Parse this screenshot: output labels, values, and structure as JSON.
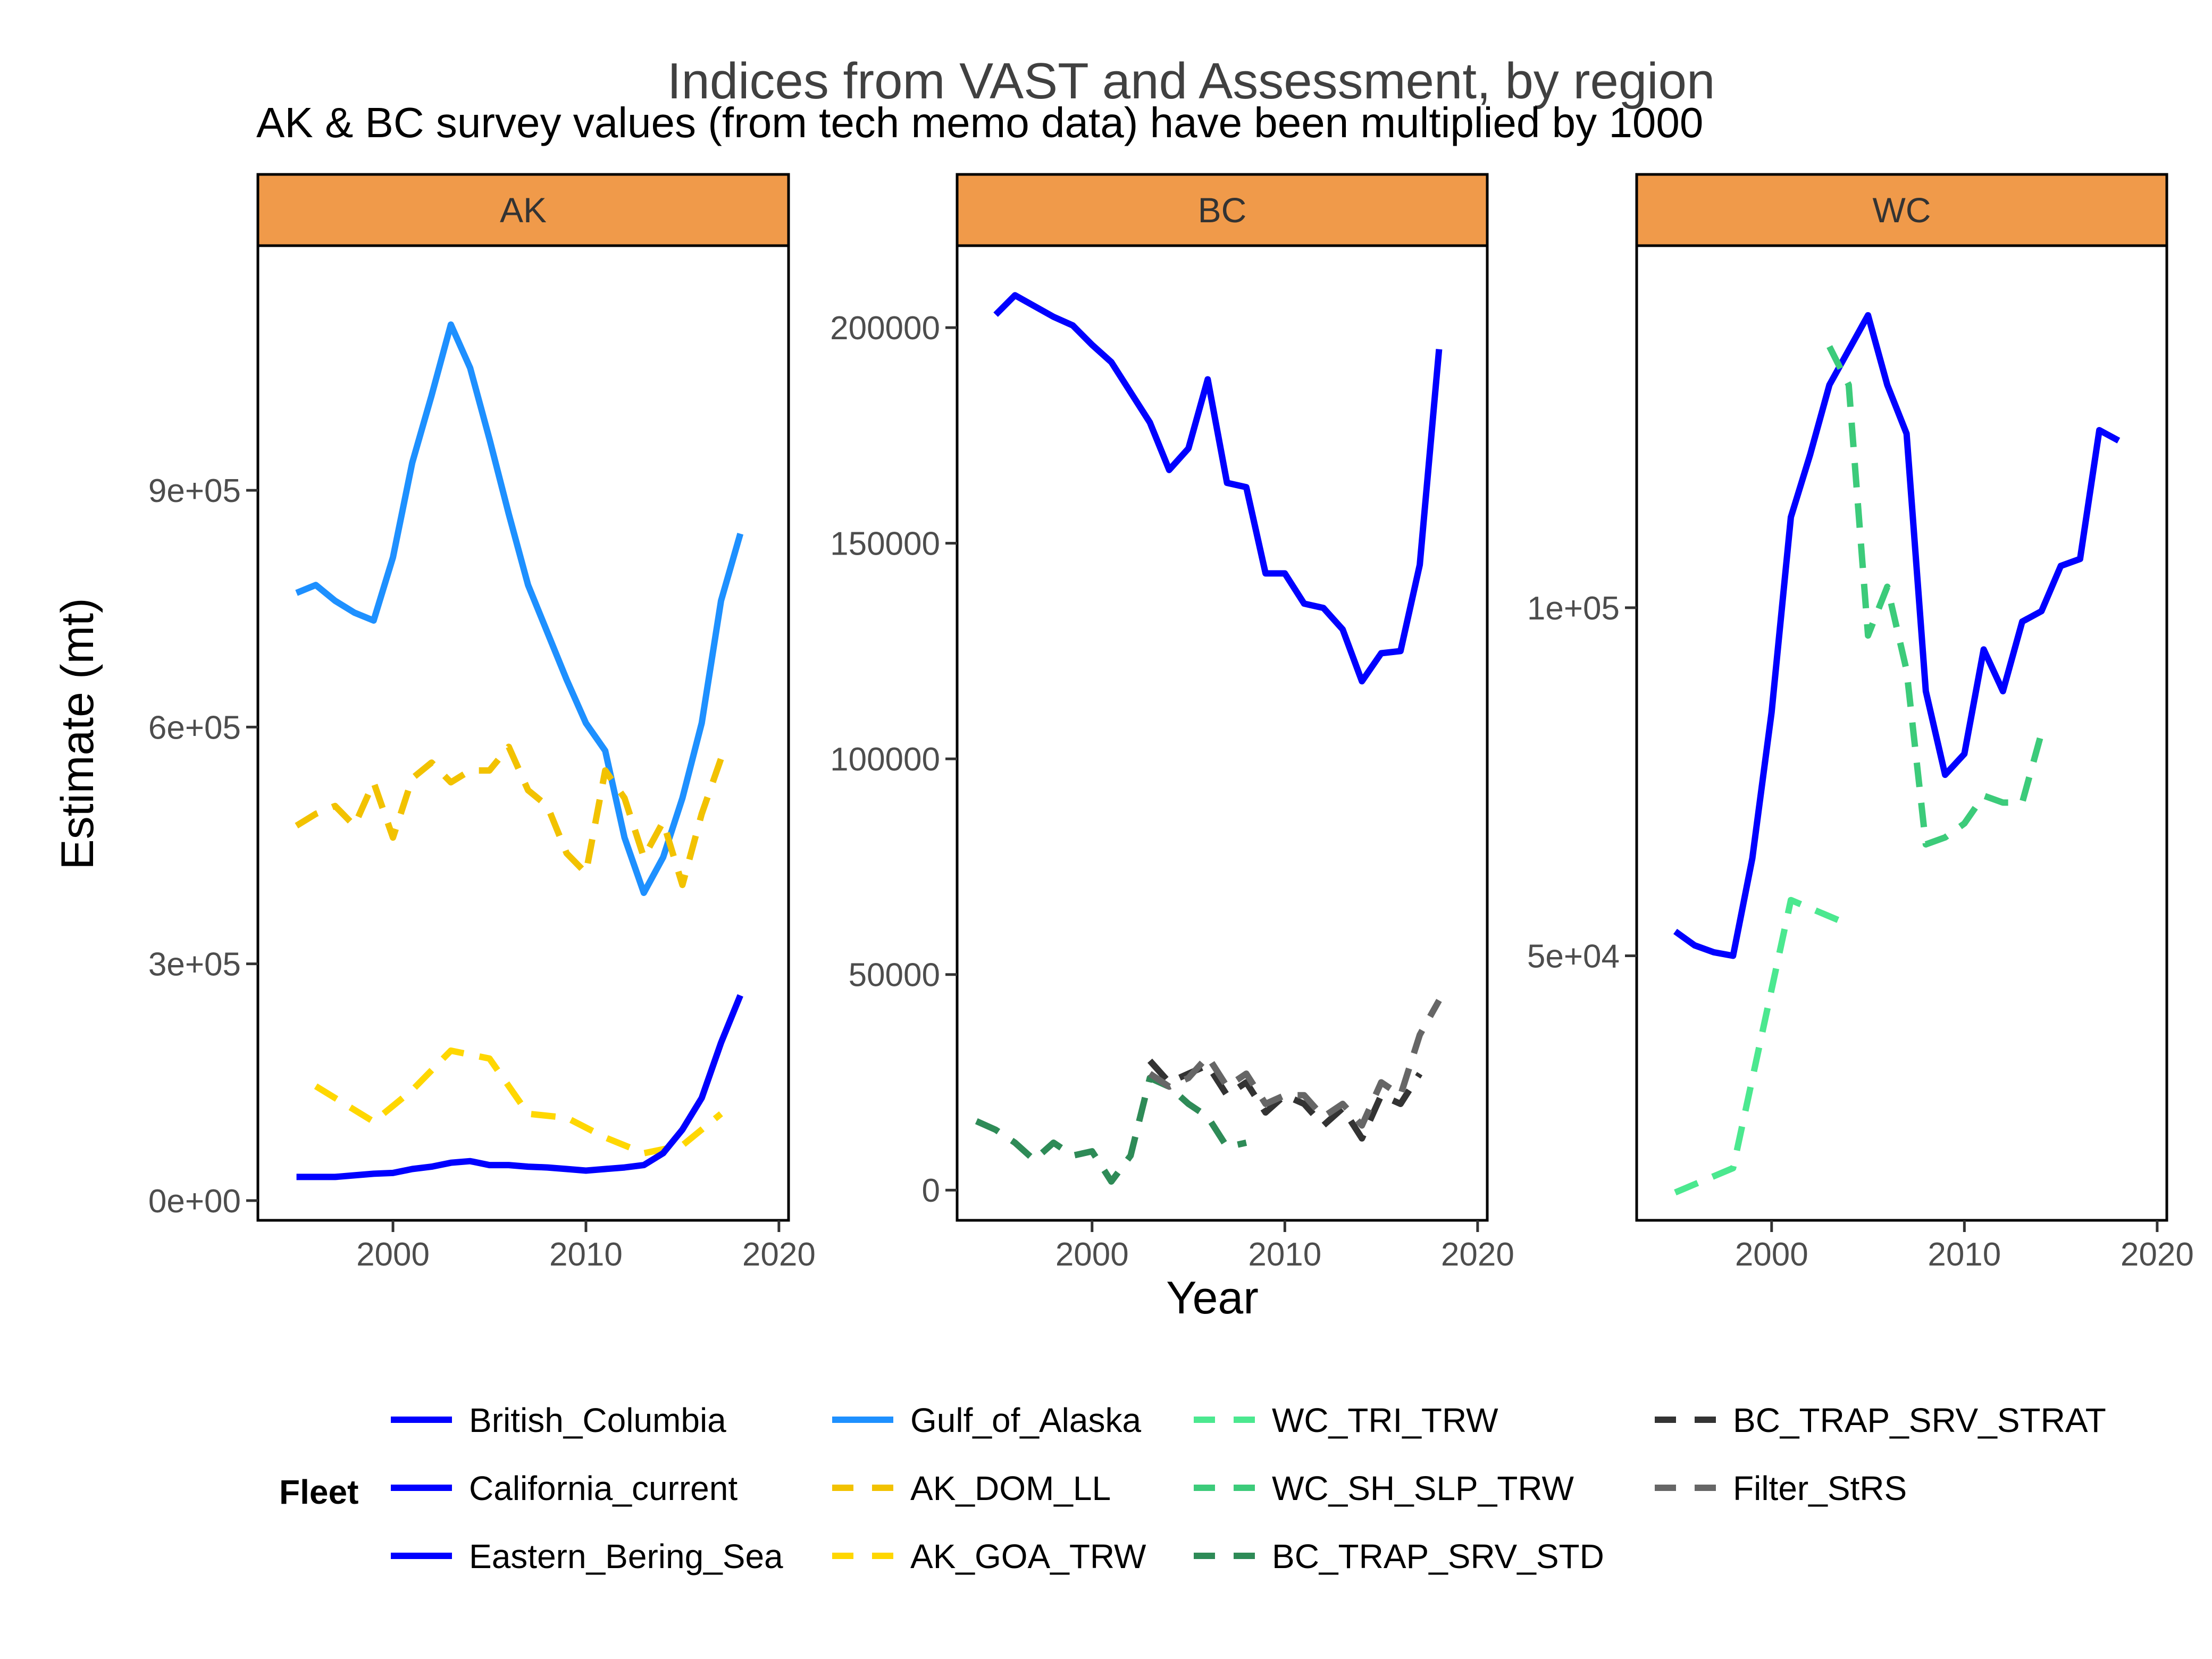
{
  "title": "Indices from VAST and Assessment, by region",
  "subtitle": "AK & BC survey values (from tech memo data) have been multiplied by 1000",
  "xlabel": "Year",
  "ylabel": "Estimate (mt)",
  "strip_color": "#F09A4A",
  "legend": {
    "title": "Fleet",
    "entries": [
      {
        "name": "British_Columbia",
        "color": "#0000FF",
        "dash": false
      },
      {
        "name": "California_current",
        "color": "#0000FF",
        "dash": false
      },
      {
        "name": "Eastern_Bering_Sea",
        "color": "#0000FF",
        "dash": false
      },
      {
        "name": "Gulf_of_Alaska",
        "color": "#1E90FF",
        "dash": false
      },
      {
        "name": "AK_DOM_LL",
        "color": "#F2C200",
        "dash": true
      },
      {
        "name": "AK_GOA_TRW",
        "color": "#FFD700",
        "dash": true
      },
      {
        "name": "WC_TRI_TRW",
        "color": "#4BE88F",
        "dash": true
      },
      {
        "name": "WC_SH_SLP_TRW",
        "color": "#3CCB7A",
        "dash": true
      },
      {
        "name": "BC_TRAP_SRV_STD",
        "color": "#2E8B57",
        "dash": true
      },
      {
        "name": "BC_TRAP_SRV_STRAT",
        "color": "#333333",
        "dash": true
      },
      {
        "name": "Filter_StRS",
        "color": "#666666",
        "dash": true
      }
    ]
  },
  "chart_data": [
    {
      "type": "line",
      "panel": "AK",
      "xlim": [
        1993,
        2020.5
      ],
      "ylim": [
        -25000,
        1210000
      ],
      "xticks": [
        2000,
        2010,
        2020
      ],
      "xtick_labels": [
        "2000",
        "2010",
        "2020"
      ],
      "yticks": [
        0,
        300000,
        600000,
        900000
      ],
      "ytick_labels": [
        "0e+00",
        "3e+05",
        "6e+05",
        "9e+05"
      ],
      "series": [
        {
          "name": "Gulf_of_Alaska",
          "color": "#1E90FF",
          "dash": false,
          "x": [
            1995,
            1996,
            1997,
            1998,
            1999,
            2000,
            2001,
            2002,
            2003,
            2004,
            2005,
            2006,
            2007,
            2008,
            2009,
            2010,
            2011,
            2012,
            2013,
            2014,
            2015,
            2016,
            2017,
            2018
          ],
          "y": [
            770000,
            780000,
            760000,
            745000,
            735000,
            815000,
            935000,
            1020000,
            1110000,
            1055000,
            965000,
            870000,
            780000,
            720000,
            660000,
            605000,
            570000,
            460000,
            390000,
            435000,
            510000,
            605000,
            760000,
            845000
          ]
        },
        {
          "name": "AK_DOM_LL",
          "color": "#F2C200",
          "dash": true,
          "x": [
            1995,
            1996,
            1997,
            1998,
            1999,
            2000,
            2001,
            2002,
            2003,
            2004,
            2005,
            2006,
            2007,
            2008,
            2009,
            2010,
            2011,
            2012,
            2013,
            2014,
            2015,
            2016,
            2017
          ],
          "y": [
            475000,
            490000,
            500000,
            475000,
            530000,
            460000,
            535000,
            555000,
            530000,
            545000,
            545000,
            575000,
            520000,
            500000,
            440000,
            415000,
            545000,
            510000,
            435000,
            480000,
            400000,
            490000,
            560000
          ]
        },
        {
          "name": "AK_GOA_TRW",
          "color": "#FFD700",
          "dash": true,
          "x": [
            1996,
            1999,
            2001,
            2003,
            2005,
            2007,
            2009,
            2011,
            2013,
            2015,
            2017
          ],
          "y": [
            145000,
            100000,
            140000,
            190000,
            180000,
            110000,
            105000,
            80000,
            60000,
            70000,
            110000
          ]
        },
        {
          "name": "Eastern_Bering_Sea",
          "color": "#0000FF",
          "dash": false,
          "x": [
            1995,
            1996,
            1997,
            1998,
            1999,
            2000,
            2001,
            2002,
            2003,
            2004,
            2005,
            2006,
            2007,
            2008,
            2009,
            2010,
            2011,
            2012,
            2013,
            2014,
            2015,
            2016,
            2017,
            2018
          ],
          "y": [
            30000,
            30000,
            30000,
            32000,
            34000,
            35000,
            40000,
            43000,
            48000,
            50000,
            45000,
            45000,
            43000,
            42000,
            40000,
            38000,
            40000,
            42000,
            45000,
            60000,
            90000,
            130000,
            200000,
            260000
          ]
        }
      ]
    },
    {
      "type": "line",
      "panel": "BC",
      "xlim": [
        1993,
        2020.5
      ],
      "ylim": [
        -7000,
        219000
      ],
      "xticks": [
        2000,
        2010,
        2020
      ],
      "xtick_labels": [
        "2000",
        "2010",
        "2020"
      ],
      "yticks": [
        0,
        50000,
        100000,
        150000,
        200000
      ],
      "ytick_labels": [
        "0",
        "50000",
        "100000",
        "150000",
        "200000"
      ],
      "series": [
        {
          "name": "British_Columbia",
          "color": "#0000FF",
          "dash": false,
          "x": [
            1995,
            1996,
            1997,
            1998,
            1999,
            2000,
            2001,
            2002,
            2003,
            2004,
            2005,
            2006,
            2007,
            2008,
            2009,
            2010,
            2011,
            2012,
            2013,
            2014,
            2015,
            2016,
            2017,
            2018
          ],
          "y": [
            203000,
            207500,
            205000,
            202500,
            200500,
            196000,
            192000,
            185000,
            178000,
            167000,
            172000,
            188000,
            164000,
            163000,
            143000,
            143000,
            136000,
            135000,
            130000,
            118000,
            124500,
            125000,
            145000,
            195000
          ]
        },
        {
          "name": "BC_TRAP_SRV_STD",
          "color": "#2E8B57",
          "dash": true,
          "x": [
            1994,
            1995,
            1996,
            1997,
            1998,
            1999,
            2000,
            2001,
            2002,
            2003,
            2004,
            2005,
            2006,
            2007,
            2008
          ],
          "y": [
            16000,
            14000,
            11000,
            7000,
            11000,
            8000,
            9000,
            2000,
            8000,
            26000,
            24000,
            20000,
            17000,
            10000,
            11000
          ]
        },
        {
          "name": "BC_TRAP_SRV_STRAT",
          "color": "#333333",
          "dash": true,
          "x": [
            2003,
            2004,
            2005,
            2006,
            2007,
            2008,
            2009,
            2010,
            2011,
            2012,
            2013,
            2014,
            2015,
            2016,
            2017
          ],
          "y": [
            30000,
            25000,
            27000,
            29000,
            22000,
            25000,
            18000,
            22000,
            20000,
            15000,
            19000,
            12000,
            22000,
            20000,
            27000
          ]
        },
        {
          "name": "Filter_StRS",
          "color": "#666666",
          "dash": true,
          "x": [
            2003,
            2004,
            2005,
            2006,
            2007,
            2008,
            2009,
            2010,
            2011,
            2012,
            2013,
            2014,
            2015,
            2016,
            2017,
            2018
          ],
          "y": [
            27000,
            24000,
            26000,
            31000,
            24000,
            27000,
            20000,
            22000,
            22000,
            17000,
            20000,
            15000,
            25000,
            22000,
            36000,
            44000
          ]
        }
      ]
    },
    {
      "type": "line",
      "panel": "WC",
      "xlim": [
        1993,
        2020.5
      ],
      "ylim": [
        12000,
        152000
      ],
      "xticks": [
        2000,
        2010,
        2020
      ],
      "xtick_labels": [
        "2000",
        "2010",
        "2020"
      ],
      "yticks": [
        50000,
        100000
      ],
      "ytick_labels": [
        "5e+04",
        "1e+05"
      ],
      "series": [
        {
          "name": "California_current",
          "color": "#0000FF",
          "dash": false,
          "x": [
            1995,
            1996,
            1997,
            1998,
            1999,
            2000,
            2001,
            2002,
            2003,
            2004,
            2005,
            2006,
            2007,
            2008,
            2009,
            2010,
            2011,
            2012,
            2013,
            2014,
            2015,
            2016,
            2017,
            2018
          ],
          "y": [
            53500,
            51500,
            50500,
            50000,
            64000,
            85000,
            113000,
            122000,
            132000,
            137000,
            142000,
            132000,
            125000,
            88000,
            76000,
            79000,
            94000,
            88000,
            98000,
            99500,
            106000,
            107000,
            125500,
            124000
          ]
        },
        {
          "name": "WC_TRI_TRW",
          "color": "#4BE88F",
          "dash": true,
          "x": [
            1995,
            1998,
            2001,
            2004
          ],
          "y": [
            16000,
            19500,
            58000,
            54500
          ]
        },
        {
          "name": "WC_SH_SLP_TRW",
          "color": "#3CCB7A",
          "dash": true,
          "x": [
            2003,
            2004,
            2005,
            2006,
            2007,
            2008,
            2009,
            2010,
            2011,
            2012,
            2013,
            2014
          ],
          "y": [
            137500,
            132000,
            96000,
            103000,
            91000,
            66000,
            67000,
            69000,
            73000,
            72000,
            72000,
            82000
          ]
        }
      ]
    }
  ]
}
